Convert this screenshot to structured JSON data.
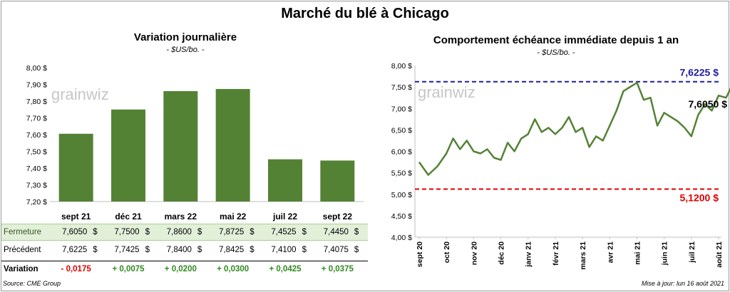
{
  "title": "Marché du blé à Chicago",
  "source": "Source: CME Group",
  "updated": "Mise à jour: lun 16 août 2021",
  "watermark": "grainwiz",
  "colors": {
    "bar": "#548235",
    "line": "#548235",
    "upper": "#1f1fa0",
    "lower": "#e00000",
    "pos": "#2f8a1f",
    "neg": "#e00000",
    "rowbg": "#e2efd9"
  },
  "chart_data": [
    {
      "type": "bar",
      "title": "Variation journalière",
      "subtitle": "- $US/bo. -",
      "categories": [
        "sept 21",
        "déc 21",
        "mars 22",
        "mai 22",
        "juil 22",
        "sept 22"
      ],
      "values": [
        7.605,
        7.75,
        7.86,
        7.8725,
        7.4525,
        7.445
      ],
      "ylim": [
        7.2,
        8.0
      ],
      "yticks": [
        "7,20 $",
        "7,30 $",
        "7,40 $",
        "7,50 $",
        "7,60 $",
        "7,70 $",
        "7,80 $",
        "7,90 $",
        "8,00 $"
      ],
      "grid": false
    },
    {
      "type": "line",
      "title": "Comportement  échéance immédiate depuis 1 an",
      "subtitle": "- $US/bo. -",
      "ylim": [
        4.0,
        8.0
      ],
      "yticks": [
        "4,00 $",
        "4,50 $",
        "5,00 $",
        "5,50 $",
        "6,00 $",
        "6,50 $",
        "7,00 $",
        "7,50 $",
        "8,00 $"
      ],
      "xticks": [
        "sept 20",
        "oct 20",
        "nov 20",
        "déc 20",
        "janv 21",
        "févr 21",
        "mars 21",
        "avr 21",
        "mai 21",
        "juin 21",
        "juil 21",
        "août 21"
      ],
      "x": [
        "sept 20",
        "sept 20",
        "sept 20",
        "oct 20",
        "oct 20",
        "oct 20",
        "oct 20",
        "nov 20",
        "nov 20",
        "nov 20",
        "nov 20",
        "déc 20",
        "déc 20",
        "déc 20",
        "déc 20",
        "janv 21",
        "janv 21",
        "janv 21",
        "janv 21",
        "févr 21",
        "févr 21",
        "févr 21",
        "févr 21",
        "mars 21",
        "mars 21",
        "mars 21",
        "mars 21",
        "avr 21",
        "avr 21",
        "avr 21",
        "avr 21",
        "mai 21",
        "mai 21",
        "mai 21",
        "mai 21",
        "juin 21",
        "juin 21",
        "juin 21",
        "juin 21",
        "juil 21",
        "juil 21",
        "juil 21",
        "juil 21",
        "août 21",
        "août 21",
        "août 21"
      ],
      "values": [
        5.75,
        5.45,
        5.65,
        5.95,
        6.3,
        6.05,
        6.25,
        6.0,
        5.95,
        6.05,
        5.85,
        5.8,
        6.2,
        6.0,
        6.3,
        6.4,
        6.75,
        6.45,
        6.55,
        6.4,
        6.55,
        6.8,
        6.45,
        6.55,
        6.1,
        6.35,
        6.25,
        6.6,
        6.95,
        7.4,
        7.5,
        7.6,
        7.2,
        7.25,
        6.6,
        6.9,
        6.8,
        6.7,
        6.55,
        6.35,
        6.85,
        7.1,
        6.95,
        7.3,
        7.25,
        7.605
      ],
      "hlines": [
        {
          "value": 7.6225,
          "label": "7,6225 $"
        },
        {
          "value": 5.12,
          "label": "5,1200 $"
        }
      ],
      "last_label": "7,6050 $",
      "grid": false
    }
  ],
  "table": {
    "rows": [
      {
        "label": "Fermeture",
        "kind": "ferm",
        "cells": [
          "7,6050",
          "7,7500",
          "7,8600",
          "7,8725",
          "7,4525",
          "7,4450"
        ]
      },
      {
        "label": "Précédent",
        "kind": "prec",
        "cells": [
          "7,6225",
          "7,7425",
          "7,8400",
          "7,8425",
          "7,4100",
          "7,4075"
        ]
      },
      {
        "label": "Variation",
        "kind": "var",
        "cells": [
          "- 0,0175",
          "+ 0,0075",
          "+ 0,0200",
          "+ 0,0300",
          "+ 0,0425",
          "+ 0,0375"
        ]
      }
    ],
    "dollar": "$"
  }
}
